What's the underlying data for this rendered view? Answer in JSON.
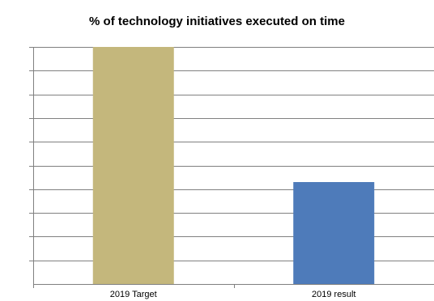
{
  "chart_data": {
    "type": "bar",
    "title": "% of technology initiatives executed on time",
    "categories": [
      "2019 Target",
      "2019 result"
    ],
    "values": [
      100,
      43
    ],
    "ylim": [
      0,
      100
    ],
    "grid": true,
    "gridlines": 10,
    "bar_colors": [
      "#c4b77c",
      "#4e7bba"
    ],
    "gridline_color": "#808080",
    "axis_color": "#808080"
  }
}
